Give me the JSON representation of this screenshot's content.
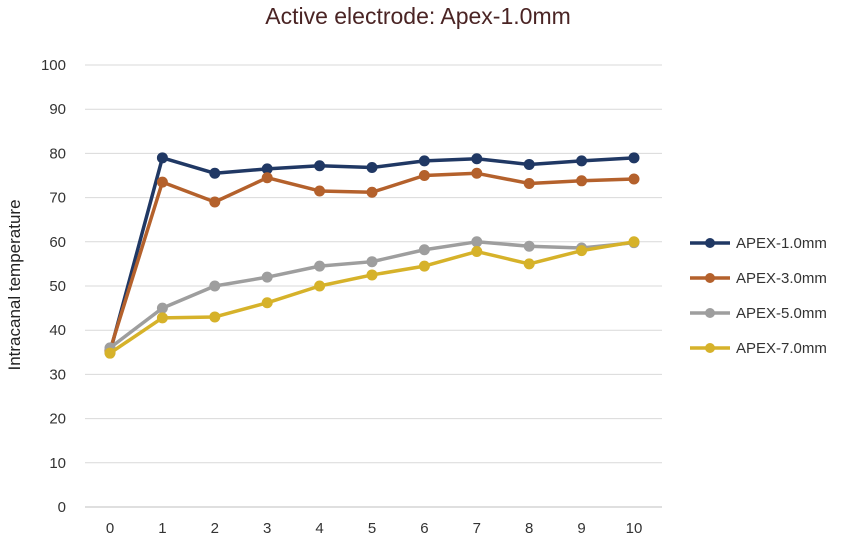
{
  "chart_data": {
    "type": "line",
    "title": "Active electrode: Apex-1.0mm",
    "xlabel": "",
    "ylabel": "Intracanal temperature",
    "x": [
      0,
      1,
      2,
      3,
      4,
      5,
      6,
      7,
      8,
      9,
      10
    ],
    "ylim": [
      0,
      100
    ],
    "yticks": [
      0,
      10,
      20,
      30,
      40,
      50,
      60,
      70,
      80,
      90,
      100
    ],
    "grid": "horizontal",
    "legend_position": "right",
    "series": [
      {
        "name": "APEX-1.0mm",
        "color": "#203864",
        "values": [
          35,
          79,
          75.5,
          76.5,
          77.2,
          76.8,
          78.3,
          78.8,
          77.5,
          78.3,
          79
        ]
      },
      {
        "name": "APEX-3.0mm",
        "color": "#b4612c",
        "values": [
          35.5,
          73.5,
          69,
          74.5,
          71.5,
          71.2,
          75,
          75.5,
          73.2,
          73.8,
          74.2
        ]
      },
      {
        "name": "APEX-5.0mm",
        "color": "#9e9e9e",
        "values": [
          36,
          45,
          50,
          52,
          54.5,
          55.5,
          58.2,
          60,
          59,
          58.6,
          59.8
        ]
      },
      {
        "name": "APEX-7.0mm",
        "color": "#d6b22a",
        "values": [
          34.8,
          42.8,
          43,
          46.2,
          50,
          52.5,
          54.5,
          57.8,
          55,
          58,
          60
        ]
      }
    ]
  }
}
